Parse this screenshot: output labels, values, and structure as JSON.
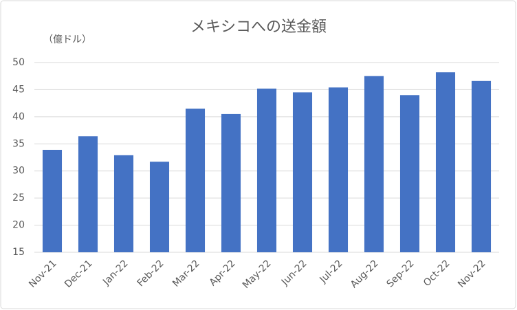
{
  "chart_data": {
    "type": "bar",
    "title": "メキシコへの送金額",
    "y_label": "（億ドル）",
    "categories": [
      "Nov-21",
      "Dec-21",
      "Jan-22",
      "Feb-22",
      "Mar-22",
      "Apr-22",
      "May-22",
      "Jun-22",
      "Jul-22",
      "Aug-22",
      "Sep-22",
      "Oct-22",
      "Nov-22"
    ],
    "values": [
      33.9,
      36.4,
      32.9,
      31.7,
      41.5,
      40.5,
      45.2,
      44.5,
      45.4,
      47.5,
      44.0,
      48.2,
      46.6
    ],
    "color": "#4472c4",
    "ylim": [
      15,
      50
    ],
    "yticks": [
      15,
      20,
      25,
      30,
      35,
      40,
      45,
      50
    ],
    "grid": true
  }
}
